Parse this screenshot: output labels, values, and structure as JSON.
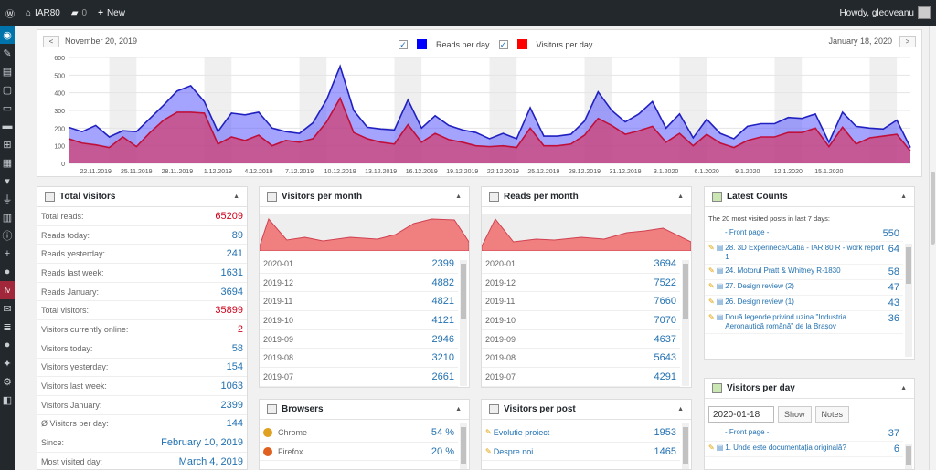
{
  "adminbar": {
    "site_name": "IAR80",
    "comments_count": "0",
    "new_label": "New",
    "howdy": "Howdy, gleoveanu"
  },
  "chart_nav": {
    "start_date": "November 20, 2019",
    "end_date": "January 18, 2020",
    "prev": "<",
    "next": ">"
  },
  "legend": [
    {
      "label": "Reads per day",
      "color": "#0000ff"
    },
    {
      "label": "Visitors per day",
      "color": "#ff0000"
    }
  ],
  "chart_data": {
    "type": "area",
    "ylim": [
      0,
      600
    ],
    "yticks": [
      "0",
      "100",
      "200",
      "300",
      "400",
      "500",
      "600"
    ],
    "xticklabels": [
      "22.11.2019",
      "25.11.2019",
      "28.11.2019",
      "1.12.2019",
      "4.12.2019",
      "7.12.2019",
      "10.12.2019",
      "13.12.2019",
      "16.12.2019",
      "19.12.2019",
      "22.12.2019",
      "25.12.2019",
      "28.12.2019",
      "31.12.2019",
      "3.1.2020",
      "6.1.2020",
      "9.1.2020",
      "12.1.2020",
      "15.1.2020"
    ],
    "series": [
      {
        "name": "Reads per day",
        "color": "#0000ff",
        "values": [
          205,
          180,
          215,
          150,
          185,
          180,
          255,
          330,
          410,
          440,
          350,
          180,
          285,
          275,
          290,
          200,
          180,
          170,
          230,
          360,
          550,
          300,
          205,
          195,
          190,
          360,
          200,
          270,
          215,
          190,
          175,
          140,
          170,
          140,
          315,
          155,
          155,
          165,
          240,
          405,
          300,
          235,
          280,
          350,
          200,
          280,
          145,
          250,
          170,
          140,
          210,
          225,
          225,
          260,
          255,
          280,
          120,
          290,
          210,
          200,
          195,
          245,
          90
        ]
      },
      {
        "name": "Visitors per day",
        "color": "#ff0000",
        "values": [
          140,
          115,
          105,
          90,
          150,
          95,
          175,
          245,
          290,
          290,
          285,
          110,
          150,
          130,
          160,
          100,
          130,
          120,
          140,
          235,
          370,
          175,
          140,
          120,
          110,
          220,
          120,
          170,
          135,
          120,
          100,
          95,
          100,
          90,
          200,
          100,
          100,
          110,
          160,
          255,
          215,
          165,
          185,
          210,
          120,
          170,
          100,
          165,
          115,
          90,
          130,
          150,
          150,
          175,
          175,
          200,
          95,
          205,
          110,
          145,
          155,
          165,
          70
        ]
      }
    ]
  },
  "total_visitors": {
    "title": "Total visitors",
    "rows": [
      {
        "label": "Total reads:",
        "value": "65209"
      },
      {
        "label": "Reads today:",
        "value": "89"
      },
      {
        "label": "Reads yesterday:",
        "value": "241"
      },
      {
        "label": "Reads last week:",
        "value": "1631"
      },
      {
        "label": "Reads January:",
        "value": "3694"
      },
      {
        "label": "Total visitors:",
        "value": "35899"
      },
      {
        "label": "Visitors currently online:",
        "value": "2"
      },
      {
        "label": "Visitors today:",
        "value": "58"
      },
      {
        "label": "Visitors yesterday:",
        "value": "154"
      },
      {
        "label": "Visitors last week:",
        "value": "1063"
      },
      {
        "label": "Visitors January:",
        "value": "2399"
      },
      {
        "label": "Ø Visitors per day:",
        "value": "144"
      },
      {
        "label": "Since:",
        "value": "February 10, 2019"
      },
      {
        "label": "Most visited day:",
        "value": "March 4, 2019"
      }
    ]
  },
  "visitors_per_month": {
    "title": "Visitors per month",
    "rows": [
      {
        "label": "2020-01",
        "value": "2399"
      },
      {
        "label": "2019-12",
        "value": "4882"
      },
      {
        "label": "2019-11",
        "value": "4821"
      },
      {
        "label": "2019-10",
        "value": "4121"
      },
      {
        "label": "2019-09",
        "value": "2946"
      },
      {
        "label": "2019-08",
        "value": "3210"
      },
      {
        "label": "2019-07",
        "value": "2661"
      }
    ]
  },
  "reads_per_month": {
    "title": "Reads per month",
    "rows": [
      {
        "label": "2020-01",
        "value": "3694"
      },
      {
        "label": "2019-12",
        "value": "7522"
      },
      {
        "label": "2019-11",
        "value": "7660"
      },
      {
        "label": "2019-10",
        "value": "7070"
      },
      {
        "label": "2019-09",
        "value": "4637"
      },
      {
        "label": "2019-08",
        "value": "5643"
      },
      {
        "label": "2019-07",
        "value": "4291"
      }
    ]
  },
  "latest_counts": {
    "title": "Latest Counts",
    "subtitle": "The 20 most visited posts in last 7 days:",
    "rows": [
      {
        "label": "- Front page -",
        "value": "550"
      },
      {
        "label": "28. 3D Experinece/Catia - IAR 80 R - work report 1",
        "value": "64"
      },
      {
        "label": "24. Motorul Pratt & Whitney R-1830",
        "value": "58"
      },
      {
        "label": "27. Design review (2)",
        "value": "47"
      },
      {
        "label": "26. Design review (1)",
        "value": "43"
      },
      {
        "label": "Două legende privind uzina \"Industria Aeronautică română\" de la Brașov",
        "value": "36"
      }
    ]
  },
  "browsers": {
    "title": "Browsers",
    "rows": [
      {
        "label": "Chrome",
        "value": "54 %"
      },
      {
        "label": "Firefox",
        "value": "20 %"
      }
    ]
  },
  "visitors_per_post": {
    "title": "Visitors per post",
    "rows": [
      {
        "label": "Evolutie proiect",
        "value": "1953"
      },
      {
        "label": "Despre noi",
        "value": "1465"
      }
    ]
  },
  "visitors_per_day": {
    "title": "Visitors per day",
    "date_value": "2020-01-18",
    "show_label": "Show",
    "notes_label": "Notes",
    "rows": [
      {
        "label": "- Front page -",
        "value": "37"
      },
      {
        "label": "1. Unde este documentația originală?",
        "value": "6"
      }
    ]
  }
}
